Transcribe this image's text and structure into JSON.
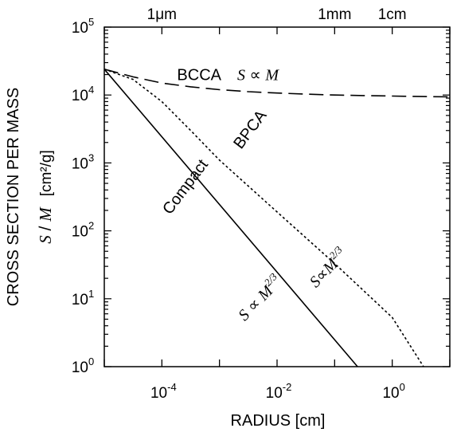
{
  "chart_data": {
    "type": "line",
    "title": "",
    "xlabel": "RADIUS  [cm]",
    "ylabel_line1": "CROSS SECTION PER MASS",
    "ylabel_sym_S": "S",
    "ylabel_sym_sep": " / ",
    "ylabel_sym_M": "M",
    "ylabel_unit": "[cm²/g]",
    "x_scale": "log",
    "y_scale": "log",
    "xlim": [
      1e-05,
      10
    ],
    "ylim": [
      1,
      100000
    ],
    "x_ticks": [
      {
        "value": 0.0001,
        "base": "10",
        "exp": "-4"
      },
      {
        "value": 0.01,
        "base": "10",
        "exp": "-2"
      },
      {
        "value": 1,
        "base": "10",
        "exp": "0"
      }
    ],
    "y_ticks": [
      {
        "value": 1,
        "base": "10",
        "exp": "0"
      },
      {
        "value": 10,
        "base": "10",
        "exp": "1"
      },
      {
        "value": 100,
        "base": "10",
        "exp": "2"
      },
      {
        "value": 1000,
        "base": "10",
        "exp": "3"
      },
      {
        "value": 10000,
        "base": "10",
        "exp": "4"
      },
      {
        "value": 100000,
        "base": "10",
        "exp": "5"
      }
    ],
    "top_axis_labels": [
      {
        "value": 0.0001,
        "text": "1μm"
      },
      {
        "value": 0.1,
        "text": "1mm"
      },
      {
        "value": 1,
        "text": "1cm"
      }
    ],
    "grid": false,
    "series": [
      {
        "name": "BCCA",
        "style": "dashed",
        "x": [
          1e-05,
          3.16e-05,
          0.0001,
          0.000316,
          0.001,
          0.00316,
          0.01,
          0.0316,
          0.1,
          0.316,
          1,
          3.16,
          10
        ],
        "y": [
          24000,
          18500,
          15000,
          13200,
          12000,
          11200,
          10700,
          10300,
          10000,
          9800,
          9650,
          9500,
          9400
        ]
      },
      {
        "name": "BPCA",
        "style": "dotted",
        "x": [
          1e-05,
          3.16e-05,
          0.0001,
          0.000316,
          0.001,
          0.01,
          0.1,
          1,
          3.5
        ],
        "y": [
          24000,
          17000,
          8000,
          3000,
          1100,
          190,
          33,
          5.3,
          1
        ]
      },
      {
        "name": "Compact",
        "style": "solid",
        "x": [
          1e-05,
          0.25
        ],
        "y": [
          24000,
          1
        ]
      }
    ],
    "annotations": [
      {
        "value_x": 0.0014,
        "value_y": 16500,
        "label": "BCCA",
        "relation_S": "S",
        "relation_op": " ∝ ",
        "relation_M": "M",
        "relation_exp": ""
      },
      {
        "value_x": 0.004,
        "value_y": 2800,
        "label": "BPCA",
        "rotate": -53
      },
      {
        "value_x": 0.0003,
        "value_y": 400,
        "label": "Compact",
        "rotate": -53
      },
      {
        "value_x": 0.09,
        "value_y": 25,
        "relation_S": "S",
        "relation_op": "∝",
        "relation_M": "M",
        "relation_exp": "2/3",
        "rotate": -46
      },
      {
        "value_x": 0.0059,
        "value_y": 9,
        "relation_S": "S",
        "relation_op": " ∝ ",
        "relation_M": "M",
        "relation_exp": "2/3",
        "rotate": -46
      }
    ]
  }
}
